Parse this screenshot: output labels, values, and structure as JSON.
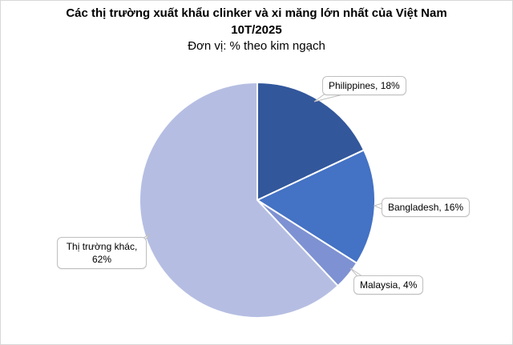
{
  "chart_data": {
    "type": "pie",
    "title": "Các thị trường xuất khẩu clinker và xi măng lớn nhất của Việt Nam",
    "period": "10T/2025",
    "unit_note": "Đơn vị: % theo kim ngạch",
    "legend_position": "none",
    "label_style": "data callouts with category name and percent",
    "start_angle_deg": 0,
    "direction": "clockwise",
    "categories": [
      "Philippines",
      "Bangladesh",
      "Malaysia",
      "Thị trường khác"
    ],
    "values": [
      18,
      16,
      4,
      62
    ],
    "slices": [
      {
        "label": "Philippines",
        "value": 18,
        "percent_text": "18%",
        "color": "#32579B",
        "callout_text": "Philippines, 18%"
      },
      {
        "label": "Bangladesh",
        "value": 16,
        "percent_text": "16%",
        "color": "#4472C4",
        "callout_text": "Bangladesh, 16%"
      },
      {
        "label": "Malaysia",
        "value": 4,
        "percent_text": "4%",
        "color": "#7E91D2",
        "callout_text": "Malaysia, 4%"
      },
      {
        "label": "Thị trường khác",
        "value": 62,
        "percent_text": "62%",
        "color": "#B5BEE2",
        "callout_text": "Thị trường khác, 62%"
      }
    ]
  },
  "style": {
    "background": "#FFFFFF",
    "frame_border": "#D8D8D8",
    "callout_bg": "#FFFFFF",
    "callout_border": "#BFBFBF",
    "slice_separator": "#FFFFFF",
    "text_color": "#000000"
  }
}
